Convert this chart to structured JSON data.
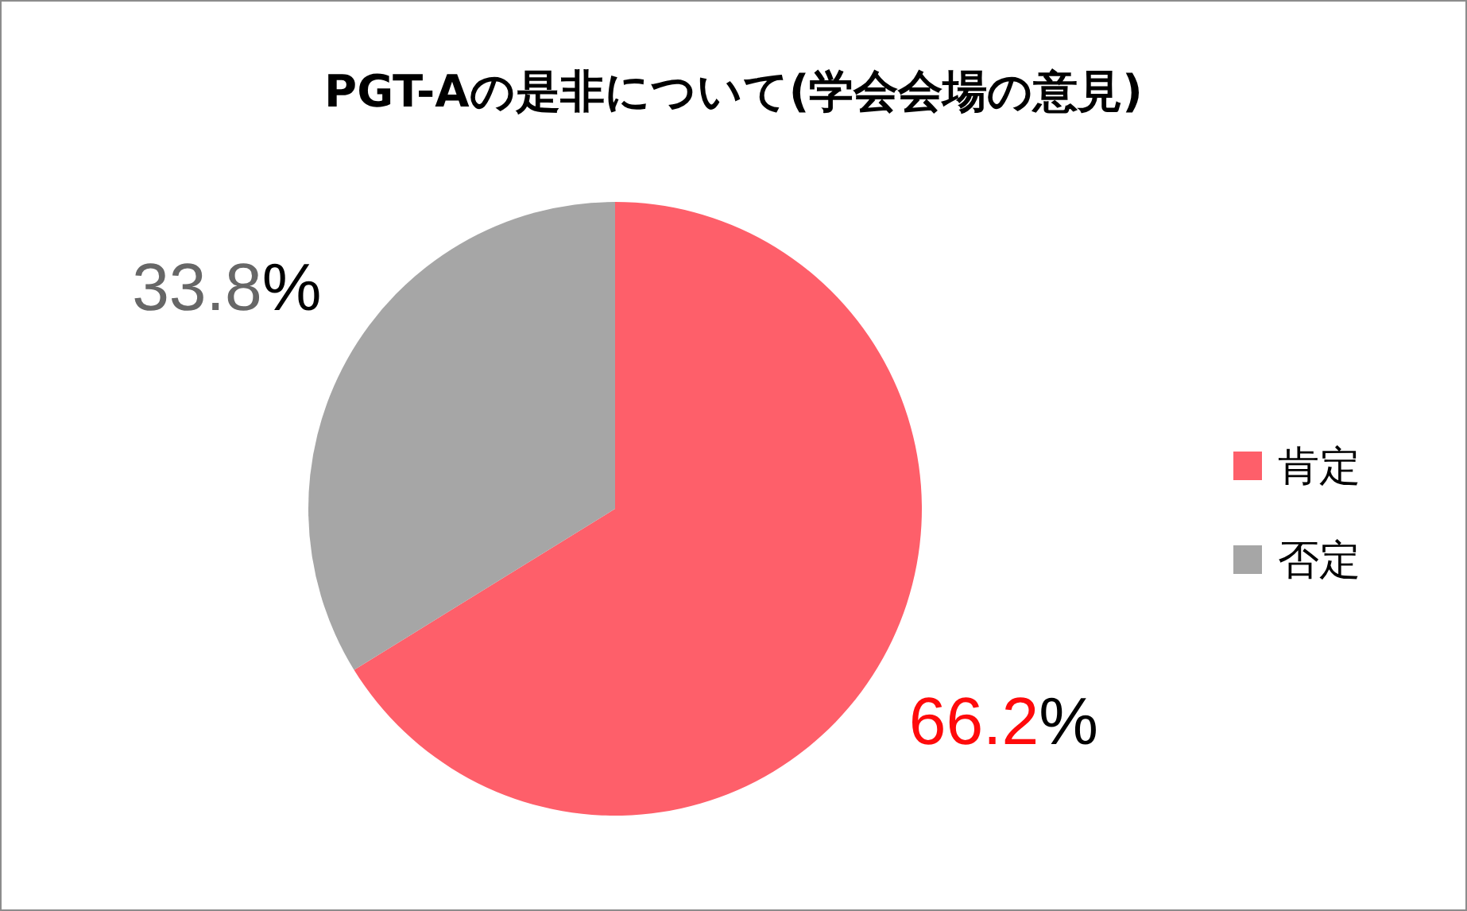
{
  "chart_data": {
    "type": "pie",
    "title": "PGT-Aの是非について(学会会場の意見)",
    "categories": [
      "肯定",
      "否定"
    ],
    "values": [
      66.2,
      33.8
    ],
    "colors": [
      "#fe5f6a",
      "#a6a6a6"
    ],
    "value_labels": [
      "66.2%",
      "33.8%"
    ],
    "legend": "right"
  }
}
